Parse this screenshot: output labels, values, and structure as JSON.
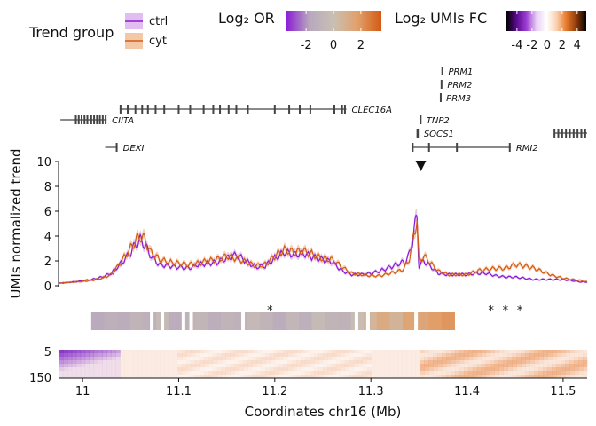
{
  "legend": {
    "trend_title": "Trend group",
    "groups": [
      {
        "name": "ctrl",
        "line": "#8a1ad6",
        "fill": "#e2bdf0"
      },
      {
        "name": "cyt",
        "line": "#d35a14",
        "fill": "#f3c8a6"
      }
    ],
    "or_title": "Log₂ OR",
    "or_ticks": [
      "-2",
      "0",
      "2"
    ],
    "or_range": [
      -3.5,
      3.5
    ],
    "or_colors": [
      "#8a1ad6",
      "#b8a8bd",
      "#c9c0b4",
      "#e2a06b",
      "#d35a14"
    ],
    "fc_title": "Log₂ UMIs FC",
    "fc_ticks": [
      "-4",
      "-2",
      "0",
      "2",
      "4"
    ],
    "fc_range": [
      -5.4,
      5.2
    ],
    "fc_colors": [
      "#000000",
      "#5a0a8c",
      "#9c3dd4",
      "#e8cdf4",
      "#ffffff",
      "#f9d3b3",
      "#e87a2a",
      "#8f3b0a",
      "#000000"
    ]
  },
  "genes": [
    {
      "name": "PRM1",
      "start": 11.374,
      "end": 11.375,
      "row": 0,
      "exons": [
        11.3743
      ]
    },
    {
      "name": "PRM2",
      "start": 11.373,
      "end": 11.374,
      "row": 1,
      "exons": [
        11.3735
      ]
    },
    {
      "name": "PRM3",
      "start": 11.3725,
      "end": 11.3729,
      "row": 2,
      "exons": [
        11.3727
      ]
    },
    {
      "name": "CLEC16A",
      "start": 11.0385,
      "end": 11.2745,
      "row": 3,
      "exons": [
        11.0395,
        11.047,
        11.055,
        11.062,
        11.068,
        11.076,
        11.085,
        11.1,
        11.112,
        11.126,
        11.136,
        11.143,
        11.152,
        11.16,
        11.172,
        11.2,
        11.215,
        11.226,
        11.237,
        11.262,
        11.27,
        11.273
      ]
    },
    {
      "name": "CIITA",
      "start": 10.977,
      "end": 11.025,
      "row": 4,
      "exons": [
        10.993,
        10.996,
        10.999,
        11.002,
        11.005,
        11.009,
        11.012,
        11.015,
        11.018,
        11.021,
        11.024
      ]
    },
    {
      "name": "TNP2",
      "start": 11.3515,
      "end": 11.3522,
      "row": 4,
      "exons": [
        11.3518
      ]
    },
    {
      "name": "SOCS1",
      "start": 11.348,
      "end": 11.3495,
      "row": 5,
      "exons": [
        11.3484,
        11.3489
      ]
    },
    {
      "name": "RMI2",
      "start": 11.343,
      "end": 11.4455,
      "row": 6,
      "exons": [
        11.3435,
        11.3605,
        11.3895,
        11.4445
      ]
    },
    {
      "name": "DEXI",
      "start": 11.0235,
      "end": 11.0365,
      "row": 6,
      "exons": [
        11.0355
      ]
    }
  ],
  "gene_right_cluster": {
    "start": 11.4905,
    "end": 11.525,
    "row": 5,
    "exons": [
      11.491,
      11.495,
      11.499,
      11.503,
      11.507,
      11.511,
      11.515,
      11.519,
      11.523
    ]
  },
  "marker": {
    "x": 11.352
  },
  "chart_data": {
    "type": "line",
    "x": [
      10.975,
      10.99,
      11.0,
      11.01,
      11.02,
      11.03,
      11.04,
      11.05,
      11.055,
      11.06,
      11.065,
      11.07,
      11.08,
      11.09,
      11.1,
      11.11,
      11.12,
      11.13,
      11.14,
      11.15,
      11.16,
      11.17,
      11.18,
      11.19,
      11.2,
      11.21,
      11.22,
      11.23,
      11.24,
      11.25,
      11.26,
      11.27,
      11.28,
      11.29,
      11.3,
      11.31,
      11.32,
      11.33,
      11.335,
      11.34,
      11.343,
      11.345,
      11.348,
      11.35,
      11.355,
      11.36,
      11.37,
      11.38,
      11.39,
      11.4,
      11.41,
      11.42,
      11.43,
      11.44,
      11.45,
      11.46,
      11.47,
      11.48,
      11.49,
      11.5,
      11.51,
      11.52,
      11.525
    ],
    "series": [
      {
        "name": "ctrl",
        "values": [
          0.2,
          0.3,
          0.4,
          0.5,
          0.7,
          1.0,
          1.8,
          2.7,
          3.3,
          3.7,
          3.3,
          2.5,
          1.7,
          1.6,
          1.5,
          1.4,
          1.7,
          1.8,
          1.9,
          2.2,
          2.5,
          2.0,
          1.5,
          1.6,
          2.2,
          2.7,
          2.5,
          2.6,
          2.3,
          2.1,
          1.9,
          1.2,
          0.9,
          0.9,
          1.0,
          1.2,
          1.5,
          1.8,
          1.9,
          2.5,
          3.5,
          4.5,
          5.5,
          1.6,
          2.0,
          1.7,
          1.0,
          0.9,
          0.9,
          0.9,
          1.0,
          1.0,
          0.8,
          0.7,
          0.7,
          0.6,
          0.5,
          0.5,
          0.5,
          0.5,
          0.4,
          0.3,
          0.3
        ]
      },
      {
        "name": "cyt",
        "values": [
          0.2,
          0.3,
          0.35,
          0.45,
          0.6,
          0.9,
          1.9,
          3.0,
          3.6,
          4.0,
          3.7,
          2.8,
          2.1,
          1.9,
          1.8,
          1.7,
          1.8,
          2.0,
          2.1,
          2.4,
          2.2,
          1.9,
          1.6,
          1.7,
          2.4,
          2.9,
          2.7,
          2.8,
          2.5,
          2.2,
          2.1,
          1.5,
          1.0,
          0.9,
          0.8,
          0.8,
          1.0,
          1.2,
          1.4,
          2.2,
          3.3,
          4.3,
          5.4,
          1.9,
          2.4,
          2.0,
          1.2,
          0.9,
          0.9,
          0.9,
          1.2,
          1.3,
          1.4,
          1.4,
          1.7,
          1.6,
          1.4,
          1.1,
          0.8,
          0.6,
          0.5,
          0.4,
          0.3
        ]
      }
    ],
    "xlabel": "Coordinates chr16 (Mb)",
    "ylabel": "UMIs normalized trend",
    "xlim": [
      10.975,
      11.525
    ],
    "ylim": [
      0,
      10
    ],
    "x_ticks": [
      "11",
      "11.1",
      "11.2",
      "11.3",
      "11.4",
      "11.5"
    ],
    "y_ticks": [
      "0",
      "2",
      "4",
      "6",
      "8",
      "10"
    ],
    "or_bins": {
      "start": 11.009,
      "width": 0.0135,
      "values": [
        -1.6,
        -1.2,
        -1.4,
        -0.9,
        -1.2,
        -0.4,
        -1.4,
        -1.0,
        -0.8,
        -1.3,
        -0.9,
        -1.1,
        -0.5,
        -0.9,
        -1.4,
        -0.7,
        -1.2,
        -0.4,
        -0.9,
        -1.0,
        -0.2,
        0.6,
        1.2,
        0.7,
        1.5,
        1.4,
        1.8,
        2.0
      ],
      "gaps": [
        11.072,
        11.083,
        11.105,
        11.113,
        11.167,
        11.285,
        11.297,
        11.347,
        11.412,
        11.46
      ],
      "sig": [
        11.195,
        11.425,
        11.44,
        11.455
      ]
    },
    "heatmap_ylabels": [
      "5",
      "150"
    ],
    "heatmap_ylim": [
      5,
      150
    ]
  }
}
